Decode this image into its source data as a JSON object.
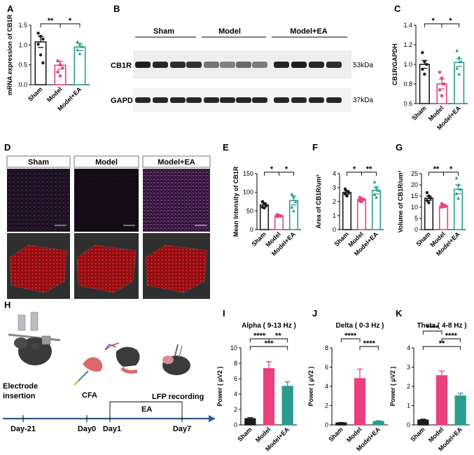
{
  "colors": {
    "sham": "#1a1a1a",
    "model": "#e8417e",
    "model_ea": "#2a9d8f",
    "timeline": "#2f5b88",
    "confocal_bg": "#1b0f1f",
    "surface_red": "#c0131a"
  },
  "panel_letters": [
    "A",
    "B",
    "C",
    "D",
    "E",
    "F",
    "G",
    "H",
    "I",
    "J",
    "K"
  ],
  "groups": [
    "Sham",
    "Model",
    "Model+EA"
  ],
  "panel_b": {
    "bands": [
      "CB1R",
      "GAPDH"
    ],
    "sizes": [
      "53kDa",
      "37kDa"
    ]
  },
  "panel_h": {
    "labels": {
      "electrode": "Electrode",
      "insertion": "insertion",
      "cfa": "CFA",
      "ea": "EA",
      "lfp": "LFP recording"
    },
    "days": [
      "Day-21",
      "Day0",
      "Day1",
      "Day7"
    ]
  },
  "chart_data": [
    {
      "panel": "A",
      "type": "bar",
      "categories": [
        "Sham",
        "Model",
        "Model+EA"
      ],
      "values": [
        1.08,
        0.49,
        0.95
      ],
      "errors": [
        0.14,
        0.1,
        0.09
      ],
      "points": [
        [
          1.3,
          1.22,
          1.15,
          1.02,
          0.75,
          0.55
        ],
        [
          0.6,
          0.5,
          0.42,
          0.32,
          0.22
        ],
        [
          1.08,
          1.02,
          0.96,
          0.88,
          0.78
        ]
      ],
      "ylabel": "mRNA expression of CB1R",
      "ylim": [
        0,
        1.5
      ],
      "yticks": [
        "0.0",
        "0.5",
        "1.0",
        "1.5"
      ],
      "sig": [
        "**",
        "*"
      ]
    },
    {
      "panel": "C",
      "type": "bar",
      "categories": [
        "Sham",
        "Model",
        "Model+EA"
      ],
      "values": [
        1.0,
        0.8,
        1.02
      ],
      "errors": [
        0.04,
        0.05,
        0.04
      ],
      "points": [
        [
          1.12,
          1.03,
          1.0,
          0.95,
          0.9
        ],
        [
          0.92,
          0.86,
          0.8,
          0.74,
          0.68
        ],
        [
          1.14,
          1.07,
          1.03,
          0.96,
          0.9
        ]
      ],
      "ylabel": "CB1R/GAPDH",
      "ylim": [
        0.6,
        1.4
      ],
      "yticks": [
        "0.6",
        "0.8",
        "1.0",
        "1.2",
        "1.4"
      ],
      "sig": [
        "*",
        "*"
      ]
    },
    {
      "panel": "E",
      "type": "bar",
      "categories": [
        "Sham",
        "Model",
        "Model+EA"
      ],
      "values": [
        66,
        37,
        78
      ],
      "errors": [
        5,
        2,
        12
      ],
      "points": [
        [
          75,
          70,
          65,
          60,
          58
        ],
        [
          40,
          38,
          36,
          35
        ],
        [
          95,
          88,
          75,
          60,
          50
        ]
      ],
      "ylabel": "Mean Intensity of CB1R",
      "ylim": [
        0,
        150
      ],
      "yticks": [
        "0",
        "50",
        "100",
        "150"
      ],
      "sig": [
        "*",
        "*"
      ]
    },
    {
      "panel": "F",
      "type": "bar",
      "categories": [
        "Sham",
        "Model",
        "Model+EA"
      ],
      "values": [
        2.65,
        2.15,
        2.8
      ],
      "errors": [
        0.12,
        0.08,
        0.25
      ],
      "points": [
        [
          2.9,
          2.75,
          2.65,
          2.55,
          2.4
        ],
        [
          2.3,
          2.2,
          2.15,
          2.05,
          2.0
        ],
        [
          3.4,
          3.0,
          2.8,
          2.5,
          2.3
        ]
      ],
      "ylabel": "Area of CB1R/um²",
      "ylim": [
        0,
        4
      ],
      "yticks": [
        "0",
        "1",
        "2",
        "3",
        "4"
      ],
      "sig": [
        "*",
        "**"
      ]
    },
    {
      "panel": "G",
      "type": "bar",
      "categories": [
        "Sham",
        "Model",
        "Model+EA"
      ],
      "values": [
        14,
        10.5,
        18
      ],
      "errors": [
        1,
        0.6,
        2
      ],
      "points": [
        [
          16.5,
          15,
          14,
          13,
          12
        ],
        [
          11.5,
          11,
          10.5,
          10
        ],
        [
          23,
          20,
          18,
          16,
          14
        ]
      ],
      "ylabel": "Volume of CB1R/um³",
      "ylim": [
        0,
        25
      ],
      "yticks": [
        "0",
        "5",
        "10",
        "15",
        "20",
        "25"
      ],
      "sig": [
        "**",
        "*"
      ]
    },
    {
      "panel": "I",
      "type": "bar",
      "categories": [
        "Sham",
        "Model",
        "Model+EA"
      ],
      "values": [
        0.8,
        7.3,
        5.0
      ],
      "errors": [
        0.15,
        0.9,
        0.6
      ],
      "points": [
        [],
        [],
        []
      ],
      "title": "Alpha ( 9-13 Hz )",
      "ylabel": "Power ( μV2 )",
      "ylim": [
        0,
        10
      ],
      "yticks": [
        "0",
        "2",
        "4",
        "6",
        "8",
        "10"
      ],
      "sig": [
        "****",
        "**",
        "***"
      ]
    },
    {
      "panel": "J",
      "type": "bar",
      "categories": [
        "Sham",
        "Model",
        "Model+EA"
      ],
      "values": [
        0.2,
        4.8,
        0.35
      ],
      "errors": [
        0.05,
        1.0,
        0.08
      ],
      "points": [
        [],
        [],
        []
      ],
      "title": "Delta ( 0-3 Hz )",
      "ylabel": "Power ( μV2 )",
      "ylim": [
        0,
        8
      ],
      "yticks": [
        "0",
        "2",
        "4",
        "6",
        "8"
      ],
      "sig": [
        "****",
        "****"
      ]
    },
    {
      "panel": "K",
      "type": "bar",
      "categories": [
        "Sham",
        "Model",
        "Model+EA"
      ],
      "values": [
        0.25,
        2.55,
        1.5
      ],
      "errors": [
        0.05,
        0.25,
        0.15
      ],
      "points": [
        [],
        [],
        []
      ],
      "title": "Theta ( 4-8 Hz )",
      "ylabel": "Power ( μV2 )",
      "ylim": [
        0,
        4
      ],
      "yticks": [
        "0",
        "1",
        "2",
        "3",
        "4"
      ],
      "sig": [
        "****",
        "****",
        "**"
      ]
    }
  ]
}
